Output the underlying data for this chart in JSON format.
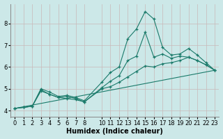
{
  "xlabel": "Humidex (Indice chaleur)",
  "background_color": "#cce8e8",
  "grid_color": "#c8b8b8",
  "line_color": "#1a7a6a",
  "xlim": [
    -0.5,
    23.5
  ],
  "ylim": [
    3.7,
    8.9
  ],
  "xticks": [
    0,
    1,
    2,
    3,
    4,
    5,
    6,
    7,
    8,
    10,
    11,
    12,
    13,
    14,
    15,
    16,
    17,
    18,
    19,
    20,
    21,
    22,
    23
  ],
  "yticks": [
    4,
    5,
    6,
    7,
    8
  ],
  "lines": [
    {
      "x": [
        0,
        1,
        2,
        3,
        4,
        5,
        6,
        7,
        8,
        10,
        11,
        12,
        13,
        14,
        15,
        16,
        17,
        18,
        19,
        20,
        21,
        22,
        23
      ],
      "y": [
        4.1,
        4.15,
        4.2,
        5.0,
        4.85,
        4.65,
        4.7,
        4.6,
        4.45,
        5.3,
        5.75,
        6.0,
        7.3,
        7.75,
        8.55,
        8.2,
        6.9,
        6.55,
        6.6,
        6.85,
        6.55,
        6.2,
        5.85
      ]
    },
    {
      "x": [
        0,
        1,
        2,
        3,
        4,
        5,
        6,
        7,
        8,
        10,
        11,
        12,
        13,
        14,
        15,
        16,
        17,
        18,
        19,
        20,
        21,
        22,
        23
      ],
      "y": [
        4.1,
        4.15,
        4.2,
        4.95,
        4.75,
        4.6,
        4.65,
        4.55,
        4.4,
        5.05,
        5.35,
        5.6,
        6.3,
        6.5,
        7.6,
        6.45,
        6.6,
        6.4,
        6.5,
        6.45,
        6.3,
        6.1,
        5.85
      ]
    },
    {
      "x": [
        0,
        1,
        2,
        3,
        4,
        5,
        6,
        7,
        8,
        10,
        11,
        12,
        13,
        14,
        15,
        16,
        17,
        18,
        19,
        20,
        21,
        22,
        23
      ],
      "y": [
        4.1,
        4.15,
        4.2,
        4.9,
        4.75,
        4.6,
        4.55,
        4.5,
        4.4,
        5.0,
        5.1,
        5.3,
        5.55,
        5.8,
        6.05,
        6.0,
        6.15,
        6.2,
        6.3,
        6.45,
        6.3,
        6.1,
        5.85
      ]
    },
    {
      "x": [
        0,
        23
      ],
      "y": [
        4.1,
        5.85
      ],
      "no_marker": true
    }
  ]
}
